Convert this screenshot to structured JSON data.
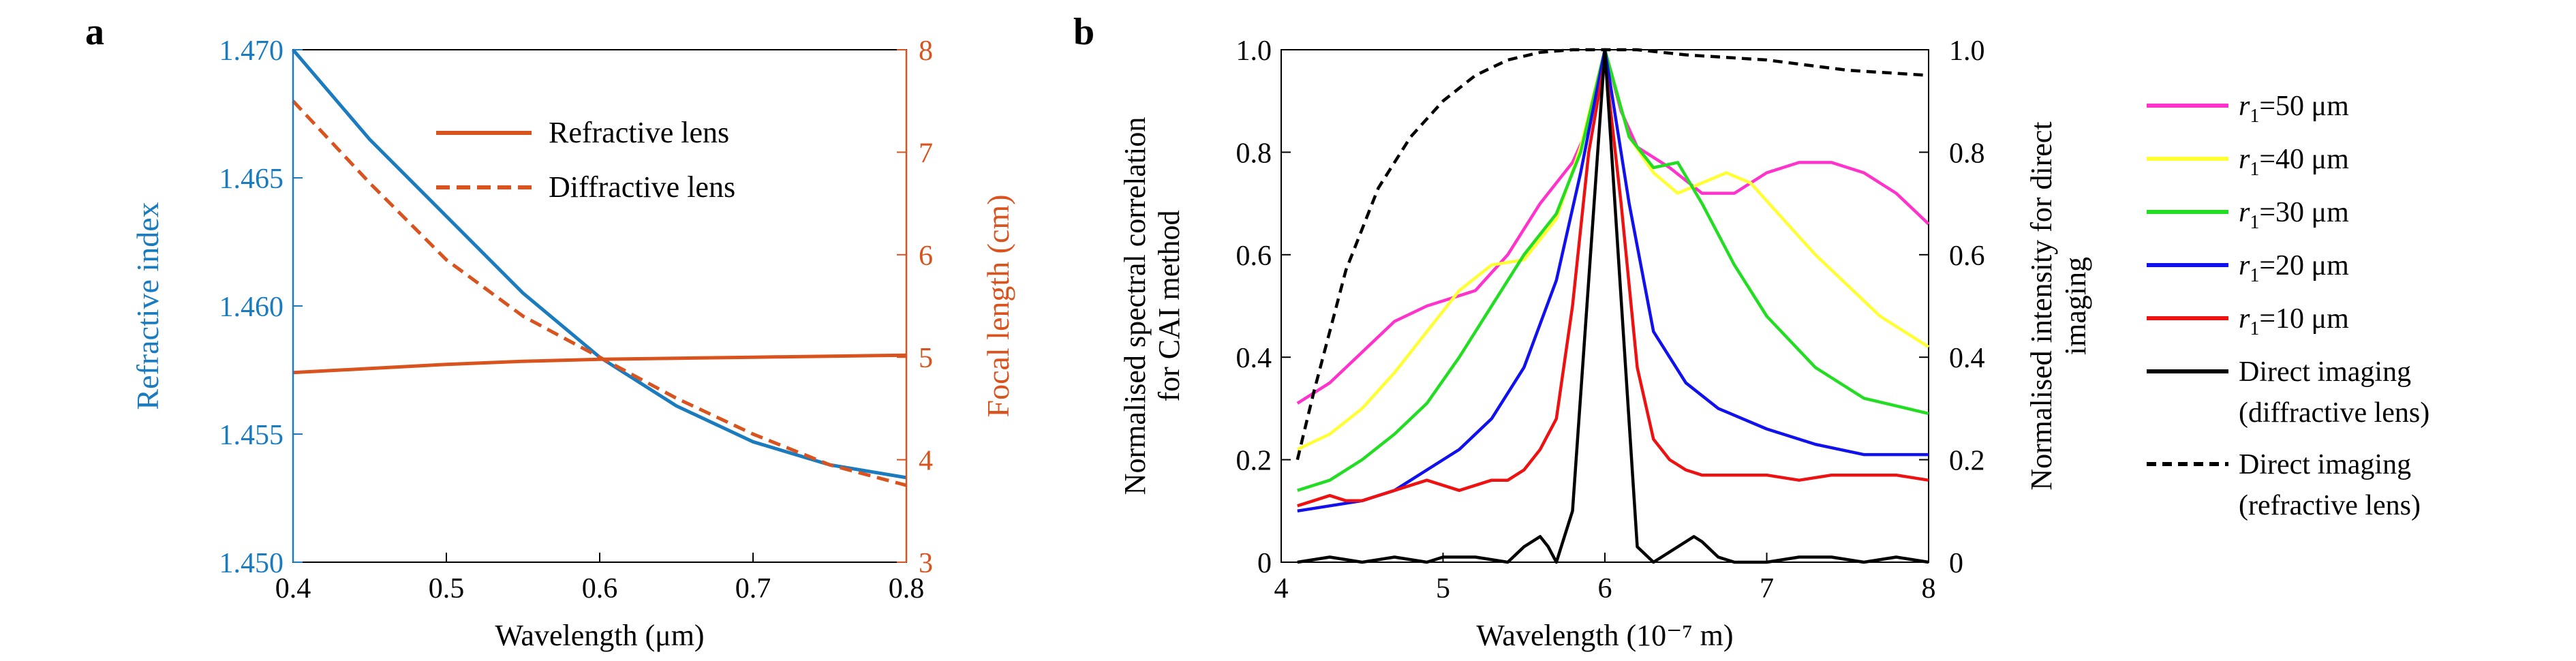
{
  "panels": {
    "a": {
      "label": "a"
    },
    "b": {
      "label": "b"
    }
  },
  "chart_data": [
    {
      "panel": "a",
      "type": "line",
      "xlabel": "Wavelength (μm)",
      "ylabel_left": "Refractive index",
      "ylabel_right": "Focal length (cm)",
      "xlim": [
        0.4,
        0.8
      ],
      "ylim_left": [
        1.45,
        1.47
      ],
      "ylim_right": [
        3,
        8
      ],
      "xticks": [
        "0.4",
        "0.5",
        "0.6",
        "0.7",
        "0.8"
      ],
      "yticks_left": [
        "1.450",
        "1.455",
        "1.460",
        "1.465",
        "1.470"
      ],
      "yticks_right": [
        "3",
        "4",
        "5",
        "6",
        "7",
        "8"
      ],
      "colors": {
        "left_axis": "#1a7bbf",
        "right_axis": "#d9531e"
      },
      "legend": {
        "placement": "top-right",
        "entries": [
          "Refractive lens",
          "Diffractive lens"
        ]
      },
      "series": [
        {
          "axis": "left",
          "color": "#1a7bbf",
          "dash": "solid",
          "x": [
            0.4,
            0.45,
            0.5,
            0.55,
            0.6,
            0.65,
            0.7,
            0.75,
            0.8
          ],
          "y": [
            1.47,
            1.4665,
            1.4635,
            1.4605,
            1.458,
            1.4561,
            1.4547,
            1.4538,
            1.4533
          ]
        },
        {
          "name": "Refractive lens",
          "axis": "right",
          "color": "#d9531e",
          "dash": "solid",
          "x": [
            0.4,
            0.45,
            0.5,
            0.55,
            0.6,
            0.65,
            0.7,
            0.75,
            0.8
          ],
          "y": [
            4.85,
            4.89,
            4.93,
            4.96,
            4.98,
            4.99,
            5.0,
            5.01,
            5.02
          ]
        },
        {
          "name": "Diffractive lens",
          "axis": "right",
          "color": "#d9531e",
          "dash": "dashed",
          "x": [
            0.4,
            0.45,
            0.5,
            0.55,
            0.6,
            0.65,
            0.7,
            0.75,
            0.8
          ],
          "y": [
            7.5,
            6.7,
            5.95,
            5.4,
            5.0,
            4.6,
            4.25,
            3.95,
            3.75
          ]
        }
      ]
    },
    {
      "panel": "b",
      "type": "line",
      "xlabel": "Wavelength (10⁻⁷ m)",
      "ylabel_left": [
        "Normalised spectral correlation",
        "for CAI method"
      ],
      "ylabel_right": [
        "Normalised intensity for direct",
        "imaging"
      ],
      "xlim": [
        4,
        8
      ],
      "ylim_left": [
        0,
        1
      ],
      "ylim_right": [
        0,
        1
      ],
      "xticks": [
        "4",
        "5",
        "6",
        "7",
        "8"
      ],
      "yticks_left": [
        "0",
        "0.2",
        "0.4",
        "0.6",
        "0.8",
        "1.0"
      ],
      "yticks_right": [
        "0",
        "0.2",
        "0.4",
        "0.6",
        "0.8",
        "1.0"
      ],
      "legend": {
        "placement": "outside-right",
        "entries": [
          {
            "var": "r",
            "sub": "1",
            "text": "=50 μm",
            "color": "#ff33cc",
            "dash": "solid"
          },
          {
            "var": "r",
            "sub": "1",
            "text": "=40 μm",
            "color": "#ffff33",
            "dash": "solid"
          },
          {
            "var": "r",
            "sub": "1",
            "text": "=30 μm",
            "color": "#22dd22",
            "dash": "solid"
          },
          {
            "var": "r",
            "sub": "1",
            "text": "=20 μm",
            "color": "#1111ee",
            "dash": "solid"
          },
          {
            "var": "r",
            "sub": "1",
            "text": "=10 μm",
            "color": "#ee1111",
            "dash": "solid"
          },
          {
            "lines": [
              "Direct imaging",
              "(diffractive lens)"
            ],
            "color": "#000000",
            "dash": "solid"
          },
          {
            "lines": [
              "Direct imaging",
              "(refractive lens)"
            ],
            "color": "#000000",
            "dash": "dashed"
          }
        ]
      },
      "series": [
        {
          "ref": "r1=50 μm",
          "color": "#ff33cc",
          "dash": "solid",
          "x": [
            4.1,
            4.3,
            4.5,
            4.7,
            4.9,
            5.0,
            5.2,
            5.4,
            5.6,
            5.8,
            5.9,
            6.0,
            6.1,
            6.2,
            6.4,
            6.6,
            6.8,
            7.0,
            7.2,
            7.4,
            7.6,
            7.8,
            8.0
          ],
          "y": [
            0.31,
            0.35,
            0.41,
            0.47,
            0.5,
            0.51,
            0.53,
            0.6,
            0.7,
            0.78,
            0.85,
            1.0,
            0.88,
            0.81,
            0.77,
            0.72,
            0.72,
            0.76,
            0.78,
            0.78,
            0.76,
            0.72,
            0.66
          ]
        },
        {
          "ref": "r1=40 μm",
          "color": "#ffff33",
          "dash": "solid",
          "x": [
            4.1,
            4.3,
            4.5,
            4.7,
            4.9,
            5.1,
            5.3,
            5.5,
            5.7,
            5.85,
            6.0,
            6.15,
            6.3,
            6.45,
            6.6,
            6.75,
            6.9,
            7.1,
            7.3,
            7.5,
            7.7,
            8.0
          ],
          "y": [
            0.22,
            0.25,
            0.3,
            0.37,
            0.45,
            0.53,
            0.58,
            0.59,
            0.67,
            0.81,
            1.0,
            0.83,
            0.76,
            0.72,
            0.74,
            0.76,
            0.74,
            0.67,
            0.6,
            0.54,
            0.48,
            0.42
          ]
        },
        {
          "ref": "r1=30 μm",
          "color": "#22dd22",
          "dash": "solid",
          "x": [
            4.1,
            4.3,
            4.5,
            4.7,
            4.9,
            5.1,
            5.3,
            5.5,
            5.7,
            5.85,
            6.0,
            6.15,
            6.3,
            6.45,
            6.6,
            6.8,
            7.0,
            7.3,
            7.6,
            8.0
          ],
          "y": [
            0.14,
            0.16,
            0.2,
            0.25,
            0.31,
            0.4,
            0.5,
            0.6,
            0.68,
            0.8,
            1.0,
            0.83,
            0.77,
            0.78,
            0.7,
            0.58,
            0.48,
            0.38,
            0.32,
            0.29
          ]
        },
        {
          "ref": "r1=20 μm",
          "color": "#1111ee",
          "dash": "solid",
          "x": [
            4.1,
            4.3,
            4.5,
            4.7,
            4.9,
            5.1,
            5.3,
            5.5,
            5.7,
            5.85,
            6.0,
            6.15,
            6.3,
            6.5,
            6.7,
            7.0,
            7.3,
            7.6,
            7.8,
            8.0
          ],
          "y": [
            0.1,
            0.11,
            0.12,
            0.14,
            0.18,
            0.22,
            0.28,
            0.38,
            0.55,
            0.76,
            1.0,
            0.7,
            0.45,
            0.35,
            0.3,
            0.26,
            0.23,
            0.21,
            0.21,
            0.21
          ]
        },
        {
          "ref": "r1=10 μm",
          "color": "#ee1111",
          "dash": "solid",
          "x": [
            4.1,
            4.2,
            4.3,
            4.4,
            4.5,
            4.6,
            4.7,
            4.8,
            4.9,
            5.0,
            5.1,
            5.2,
            5.3,
            5.4,
            5.5,
            5.6,
            5.7,
            5.8,
            5.9,
            6.0,
            6.1,
            6.2,
            6.3,
            6.4,
            6.5,
            6.6,
            6.8,
            7.0,
            7.2,
            7.4,
            7.6,
            7.8,
            8.0
          ],
          "y": [
            0.11,
            0.12,
            0.13,
            0.12,
            0.12,
            0.13,
            0.14,
            0.15,
            0.16,
            0.15,
            0.14,
            0.15,
            0.16,
            0.16,
            0.18,
            0.22,
            0.28,
            0.5,
            0.8,
            0.98,
            0.7,
            0.38,
            0.24,
            0.2,
            0.18,
            0.17,
            0.17,
            0.17,
            0.16,
            0.17,
            0.17,
            0.17,
            0.16
          ]
        },
        {
          "ref": "Direct imaging (diffractive lens)",
          "color": "#000000",
          "dash": "solid",
          "x": [
            4.1,
            4.3,
            4.5,
            4.7,
            4.9,
            5.0,
            5.2,
            5.4,
            5.5,
            5.6,
            5.65,
            5.7,
            5.8,
            6.0,
            6.2,
            6.3,
            6.4,
            6.5,
            6.55,
            6.6,
            6.7,
            6.8,
            7.0,
            7.2,
            7.4,
            7.6,
            7.8,
            8.0
          ],
          "y": [
            0.0,
            0.01,
            0.0,
            0.01,
            0.0,
            0.01,
            0.01,
            0.0,
            0.03,
            0.05,
            0.03,
            0.0,
            0.1,
            1.0,
            0.03,
            0.0,
            0.02,
            0.04,
            0.05,
            0.04,
            0.01,
            0.0,
            0.0,
            0.01,
            0.01,
            0.0,
            0.01,
            0.0
          ]
        },
        {
          "ref": "Direct imaging (refractive lens)",
          "color": "#000000",
          "dash": "dashed",
          "x": [
            4.1,
            4.2,
            4.4,
            4.6,
            4.8,
            5.0,
            5.2,
            5.4,
            5.6,
            5.8,
            6.0,
            6.2,
            6.5,
            7.0,
            7.5,
            8.0
          ],
          "y": [
            0.2,
            0.33,
            0.57,
            0.73,
            0.83,
            0.9,
            0.95,
            0.98,
            0.995,
            1.0,
            1.0,
            1.0,
            0.99,
            0.98,
            0.96,
            0.95
          ]
        }
      ]
    }
  ]
}
